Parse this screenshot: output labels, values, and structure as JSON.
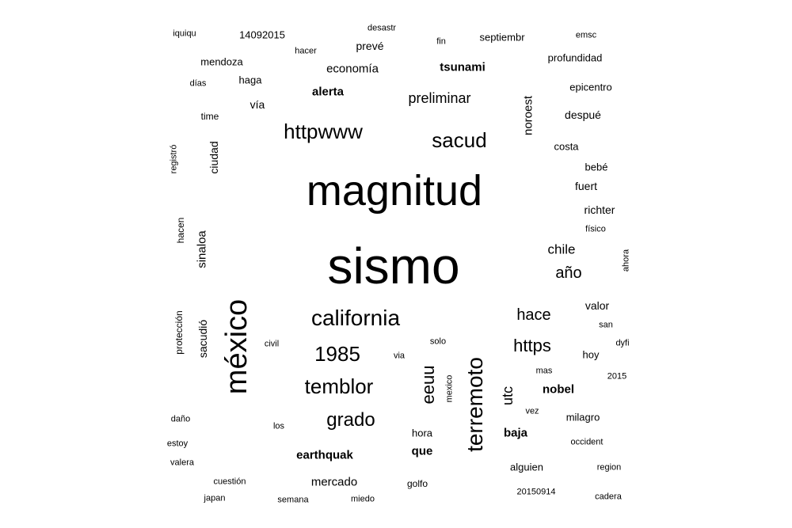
{
  "word_cloud": {
    "text_color": "#000000",
    "background": "#ffffff",
    "words": [
      {
        "id": "w-sismo",
        "text": "sismo",
        "orientation": "horizontal",
        "weight": "normal"
      },
      {
        "id": "w-magnitud",
        "text": "magnitud",
        "orientation": "horizontal",
        "weight": "normal"
      },
      {
        "id": "w-mexico-big",
        "text": "méxico",
        "orientation": "vertical",
        "weight": "normal"
      },
      {
        "id": "w-terremoto",
        "text": "terremoto",
        "orientation": "vertical",
        "weight": "normal"
      },
      {
        "id": "w-httpwww",
        "text": "httpwww",
        "orientation": "horizontal",
        "weight": "normal"
      },
      {
        "id": "w-california",
        "text": "california",
        "orientation": "horizontal",
        "weight": "normal"
      },
      {
        "id": "w-sacud",
        "text": "sacud",
        "orientation": "horizontal",
        "weight": "normal"
      },
      {
        "id": "w-1985",
        "text": "1985",
        "orientation": "horizontal",
        "weight": "normal"
      },
      {
        "id": "w-temblor",
        "text": "temblor",
        "orientation": "horizontal",
        "weight": "normal"
      },
      {
        "id": "w-grado",
        "text": "grado",
        "orientation": "horizontal",
        "weight": "normal"
      },
      {
        "id": "w-eeuu",
        "text": "eeuu",
        "orientation": "vertical",
        "weight": "normal"
      },
      {
        "id": "w-https",
        "text": "https",
        "orientation": "horizontal",
        "weight": "normal"
      },
      {
        "id": "w-hace",
        "text": "hace",
        "orientation": "horizontal",
        "weight": "normal"
      },
      {
        "id": "w-preliminar",
        "text": "preliminar",
        "orientation": "horizontal",
        "weight": "normal"
      },
      {
        "id": "w-ano",
        "text": "año",
        "orientation": "horizontal",
        "weight": "normal"
      },
      {
        "id": "w-chile",
        "text": "chile",
        "orientation": "horizontal",
        "weight": "normal"
      },
      {
        "id": "w-utc",
        "text": "utc",
        "orientation": "vertical",
        "weight": "normal"
      },
      {
        "id": "w-noroest",
        "text": "noroest",
        "orientation": "vertical",
        "weight": "normal"
      },
      {
        "id": "w-tsunami",
        "text": "tsunami",
        "orientation": "horizontal",
        "weight": "bold"
      },
      {
        "id": "w-alerta",
        "text": "alerta",
        "orientation": "horizontal",
        "weight": "bold"
      },
      {
        "id": "w-earthquak",
        "text": "earthquak",
        "orientation": "horizontal",
        "weight": "bold"
      },
      {
        "id": "w-nobel",
        "text": "nobel",
        "orientation": "horizontal",
        "weight": "bold"
      },
      {
        "id": "w-baja",
        "text": "baja",
        "orientation": "horizontal",
        "weight": "bold"
      },
      {
        "id": "w-que",
        "text": "que",
        "orientation": "horizontal",
        "weight": "bold"
      },
      {
        "id": "w-economia",
        "text": "economía",
        "orientation": "horizontal",
        "weight": "normal"
      },
      {
        "id": "w-sinaloa",
        "text": "sinaloa",
        "orientation": "vertical",
        "weight": "normal"
      },
      {
        "id": "w-sacudio",
        "text": "sacudió",
        "orientation": "vertical",
        "weight": "normal"
      },
      {
        "id": "w-ciudad",
        "text": "ciudad",
        "orientation": "vertical",
        "weight": "normal"
      },
      {
        "id": "w-mercado",
        "text": "mercado",
        "orientation": "horizontal",
        "weight": "normal"
      },
      {
        "id": "w-hora",
        "text": "hora",
        "orientation": "horizontal",
        "weight": "normal"
      },
      {
        "id": "w-valor",
        "text": "valor",
        "orientation": "horizontal",
        "weight": "normal"
      },
      {
        "id": "w-richter",
        "text": "richter",
        "orientation": "horizontal",
        "weight": "normal"
      },
      {
        "id": "w-fuert",
        "text": "fuert",
        "orientation": "horizontal",
        "weight": "normal"
      },
      {
        "id": "w-despue",
        "text": "despué",
        "orientation": "horizontal",
        "weight": "normal"
      },
      {
        "id": "w-costa",
        "text": "costa",
        "orientation": "horizontal",
        "weight": "normal"
      },
      {
        "id": "w-bebe",
        "text": "bebé",
        "orientation": "horizontal",
        "weight": "normal"
      },
      {
        "id": "w-epicentro",
        "text": "epicentro",
        "orientation": "horizontal",
        "weight": "normal"
      },
      {
        "id": "w-profundidad",
        "text": "profundidad",
        "orientation": "horizontal",
        "weight": "normal"
      },
      {
        "id": "w-septiembr",
        "text": "septiembr",
        "orientation": "horizontal",
        "weight": "normal"
      },
      {
        "id": "w-preve",
        "text": "prevé",
        "orientation": "horizontal",
        "weight": "normal"
      },
      {
        "id": "w-via-acc",
        "text": "vía",
        "orientation": "horizontal",
        "weight": "normal"
      },
      {
        "id": "w-haga",
        "text": "haga",
        "orientation": "horizontal",
        "weight": "normal"
      },
      {
        "id": "w-mendoza",
        "text": "mendoza",
        "orientation": "horizontal",
        "weight": "normal"
      },
      {
        "id": "w-14092015",
        "text": "14092015",
        "orientation": "horizontal",
        "weight": "normal"
      },
      {
        "id": "w-iquiqu",
        "text": "iquiqu",
        "orientation": "horizontal",
        "weight": "normal"
      },
      {
        "id": "w-desastr",
        "text": "desastr",
        "orientation": "horizontal",
        "weight": "normal"
      },
      {
        "id": "w-hacer",
        "text": "hacer",
        "orientation": "horizontal",
        "weight": "normal"
      },
      {
        "id": "w-fin",
        "text": "fin",
        "orientation": "horizontal",
        "weight": "normal"
      },
      {
        "id": "w-emsc",
        "text": "emsc",
        "orientation": "horizontal",
        "weight": "normal"
      },
      {
        "id": "w-dias",
        "text": "días",
        "orientation": "horizontal",
        "weight": "normal"
      },
      {
        "id": "w-time",
        "text": "time",
        "orientation": "horizontal",
        "weight": "normal"
      },
      {
        "id": "w-registro",
        "text": "registró",
        "orientation": "vertical",
        "weight": "normal"
      },
      {
        "id": "w-hacen",
        "text": "hacen",
        "orientation": "vertical",
        "weight": "normal"
      },
      {
        "id": "w-proteccion",
        "text": "protección",
        "orientation": "vertical",
        "weight": "normal"
      },
      {
        "id": "w-civil",
        "text": "civil",
        "orientation": "horizontal",
        "weight": "normal"
      },
      {
        "id": "w-dano",
        "text": "daño",
        "orientation": "horizontal",
        "weight": "normal"
      },
      {
        "id": "w-estoy",
        "text": "estoy",
        "orientation": "horizontal",
        "weight": "normal"
      },
      {
        "id": "w-valera",
        "text": "valera",
        "orientation": "horizontal",
        "weight": "normal"
      },
      {
        "id": "w-los",
        "text": "los",
        "orientation": "horizontal",
        "weight": "normal"
      },
      {
        "id": "w-cuestion",
        "text": "cuestión",
        "orientation": "horizontal",
        "weight": "normal"
      },
      {
        "id": "w-japan",
        "text": "japan",
        "orientation": "horizontal",
        "weight": "normal"
      },
      {
        "id": "w-semana",
        "text": "semana",
        "orientation": "horizontal",
        "weight": "normal"
      },
      {
        "id": "w-miedo",
        "text": "miedo",
        "orientation": "horizontal",
        "weight": "normal"
      },
      {
        "id": "w-golfo",
        "text": "golfo",
        "orientation": "horizontal",
        "weight": "normal"
      },
      {
        "id": "w-solo",
        "text": "solo",
        "orientation": "horizontal",
        "weight": "normal"
      },
      {
        "id": "w-via",
        "text": "via",
        "orientation": "horizontal",
        "weight": "normal"
      },
      {
        "id": "w-mexico-small",
        "text": "mexico",
        "orientation": "vertical",
        "weight": "normal"
      },
      {
        "id": "w-alguien",
        "text": "alguien",
        "orientation": "horizontal",
        "weight": "normal"
      },
      {
        "id": "w-20150914",
        "text": "20150914",
        "orientation": "horizontal",
        "weight": "normal"
      },
      {
        "id": "w-cadera",
        "text": "cadera",
        "orientation": "horizontal",
        "weight": "normal"
      },
      {
        "id": "w-region",
        "text": "region",
        "orientation": "horizontal",
        "weight": "normal"
      },
      {
        "id": "w-occident",
        "text": "occident",
        "orientation": "horizontal",
        "weight": "normal"
      },
      {
        "id": "w-milagro",
        "text": "milagro",
        "orientation": "horizontal",
        "weight": "normal"
      },
      {
        "id": "w-vez",
        "text": "vez",
        "orientation": "horizontal",
        "weight": "normal"
      },
      {
        "id": "w-mas",
        "text": "mas",
        "orientation": "horizontal",
        "weight": "normal"
      },
      {
        "id": "w-hoy",
        "text": "hoy",
        "orientation": "horizontal",
        "weight": "normal"
      },
      {
        "id": "w-2015",
        "text": "2015",
        "orientation": "horizontal",
        "weight": "normal"
      },
      {
        "id": "w-dyfi",
        "text": "dyfi",
        "orientation": "horizontal",
        "weight": "normal"
      },
      {
        "id": "w-san",
        "text": "san",
        "orientation": "horizontal",
        "weight": "normal"
      },
      {
        "id": "w-fisico",
        "text": "físico",
        "orientation": "horizontal",
        "weight": "normal"
      },
      {
        "id": "w-ahora",
        "text": "ahora",
        "orientation": "vertical",
        "weight": "normal"
      }
    ]
  }
}
